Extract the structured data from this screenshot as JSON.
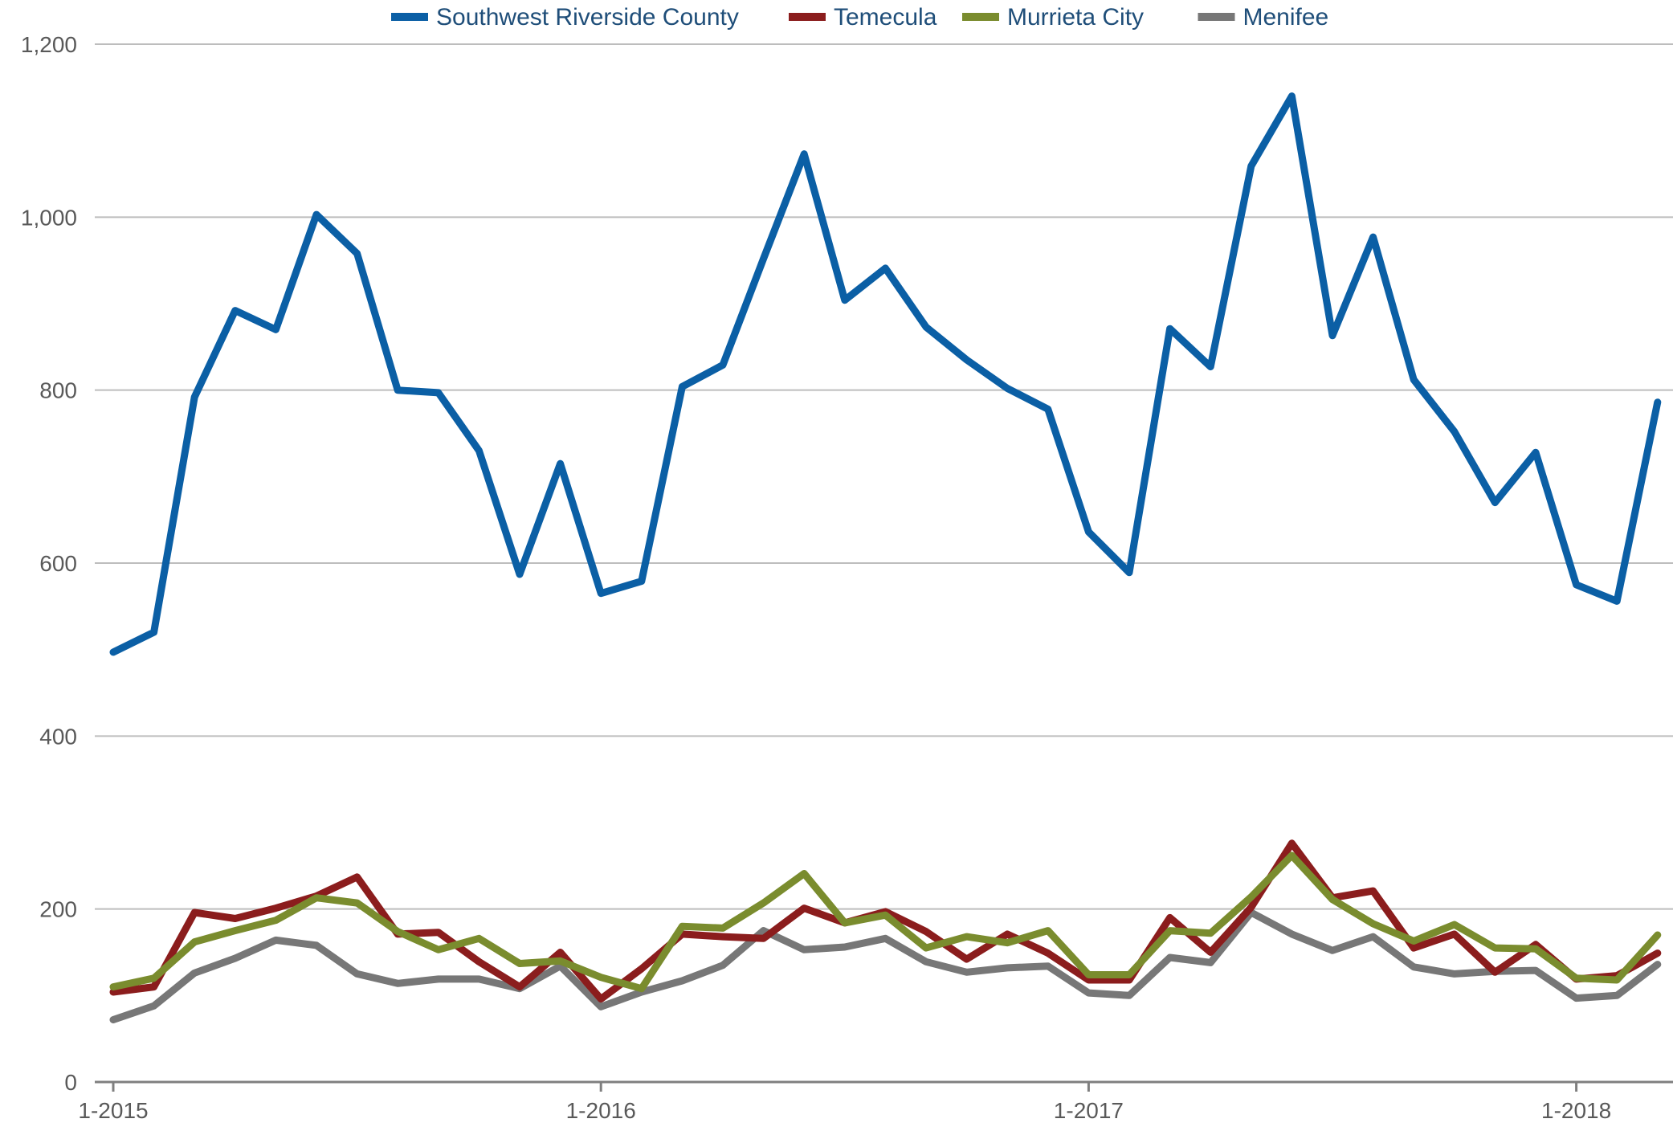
{
  "chart_data": {
    "type": "line",
    "title": "",
    "xlabel": "",
    "ylabel": "",
    "ylim": [
      0,
      1200
    ],
    "yticks": [
      0,
      200,
      400,
      600,
      800,
      1000,
      1200
    ],
    "ytick_labels": [
      "0",
      "200",
      "400",
      "600",
      "800",
      "1,000",
      "1,200"
    ],
    "xtick_labels": [
      "1-2015",
      "1-2016",
      "1-2017",
      "1-2018"
    ],
    "grid": "horizontal",
    "legend_position": "top",
    "x": [
      "2015-01",
      "2015-02",
      "2015-03",
      "2015-04",
      "2015-05",
      "2015-06",
      "2015-07",
      "2015-08",
      "2015-09",
      "2015-10",
      "2015-11",
      "2015-12",
      "2016-01",
      "2016-02",
      "2016-03",
      "2016-04",
      "2016-05",
      "2016-06",
      "2016-07",
      "2016-08",
      "2016-09",
      "2016-10",
      "2016-11",
      "2016-12",
      "2017-01",
      "2017-02",
      "2017-03",
      "2017-04",
      "2017-05",
      "2017-06",
      "2017-07",
      "2017-08",
      "2017-09",
      "2017-10",
      "2017-11",
      "2017-12",
      "2018-01",
      "2018-02",
      "2018-03"
    ],
    "series": [
      {
        "name": "Southwest Riverside County",
        "color": "#0b5fa5",
        "values": [
          497,
          520,
          792,
          892,
          870,
          1003,
          958,
          800,
          797,
          730,
          587,
          715,
          565,
          579,
          804,
          829,
          952,
          1073,
          904,
          941,
          873,
          835,
          802,
          778,
          636,
          589,
          871,
          827,
          1059,
          1140,
          863,
          977,
          812,
          752,
          670,
          728,
          575,
          556,
          786
        ]
      },
      {
        "name": "Temecula",
        "color": "#8b1d1d",
        "values": [
          104,
          110,
          196,
          189,
          201,
          215,
          237,
          171,
          173,
          139,
          110,
          150,
          96,
          131,
          171,
          168,
          166,
          201,
          184,
          197,
          174,
          142,
          171,
          149,
          118,
          118,
          190,
          150,
          202,
          276,
          213,
          221,
          155,
          171,
          127,
          159,
          119,
          123,
          149
        ]
      },
      {
        "name": "Murrieta City",
        "color": "#7a8c2e",
        "values": [
          110,
          120,
          162,
          175,
          187,
          213,
          207,
          174,
          153,
          166,
          137,
          140,
          121,
          108,
          180,
          178,
          207,
          241,
          184,
          193,
          155,
          168,
          161,
          175,
          124,
          124,
          175,
          172,
          214,
          262,
          211,
          183,
          163,
          182,
          155,
          154,
          120,
          118,
          170
        ]
      },
      {
        "name": "Menifee",
        "color": "#777777",
        "values": [
          72,
          88,
          126,
          143,
          164,
          158,
          125,
          114,
          119,
          119,
          108,
          134,
          87,
          104,
          117,
          135,
          175,
          153,
          156,
          166,
          139,
          127,
          132,
          134,
          103,
          100,
          144,
          138,
          196,
          171,
          152,
          168,
          133,
          125,
          128,
          129,
          97,
          100,
          136
        ]
      }
    ]
  }
}
